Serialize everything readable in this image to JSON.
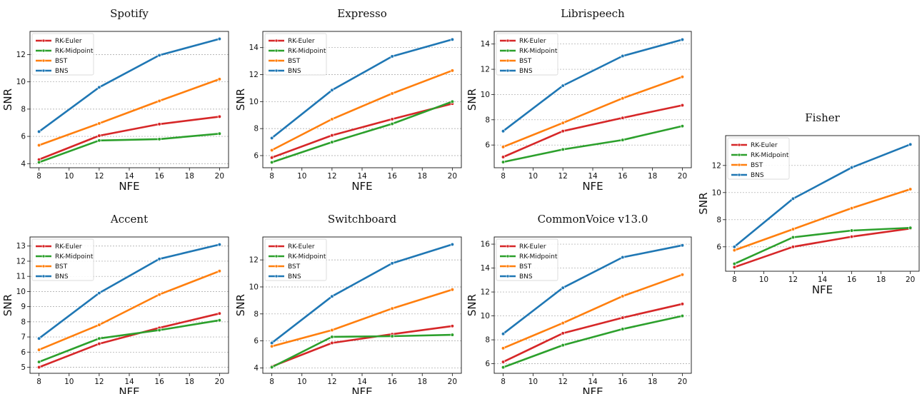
{
  "colors": {
    "RK-Euler": "#d62728",
    "RK-Midpoint": "#2ca02c",
    "BST": "#ff7f0e",
    "BNS": "#1f77b4"
  },
  "chart_data": [
    {
      "type": "line",
      "title": "Spotify",
      "xlabel": "NFE",
      "ylabel": "SNR",
      "x": [
        8,
        12,
        16,
        20
      ],
      "xticks": [
        8,
        10,
        12,
        14,
        16,
        18,
        20
      ],
      "ylim": [
        3.7,
        13.7
      ],
      "yticks": [
        4,
        6,
        8,
        10,
        12
      ],
      "legend": "top-left",
      "grid": "y-dashed",
      "series": [
        {
          "name": "RK-Euler",
          "values": [
            4.3,
            6.05,
            6.9,
            7.45
          ]
        },
        {
          "name": "RK-Midpoint",
          "values": [
            4.1,
            5.7,
            5.8,
            6.2
          ]
        },
        {
          "name": "BST",
          "values": [
            5.35,
            6.95,
            8.6,
            10.2
          ]
        },
        {
          "name": "BNS",
          "values": [
            6.35,
            9.6,
            11.95,
            13.15
          ]
        }
      ]
    },
    {
      "type": "line",
      "title": "Expresso",
      "xlabel": "NFE",
      "ylabel": "SNR",
      "x": [
        8,
        12,
        16,
        20
      ],
      "xticks": [
        8,
        10,
        12,
        14,
        16,
        18,
        20
      ],
      "ylim": [
        5.1,
        15.2
      ],
      "yticks": [
        6,
        8,
        10,
        12,
        14
      ],
      "legend": "top-left",
      "grid": "y-dashed",
      "series": [
        {
          "name": "RK-Euler",
          "values": [
            5.85,
            7.5,
            8.7,
            9.85
          ]
        },
        {
          "name": "RK-Midpoint",
          "values": [
            5.5,
            7.0,
            8.35,
            10.0
          ]
        },
        {
          "name": "BST",
          "values": [
            6.4,
            8.7,
            10.6,
            12.3
          ]
        },
        {
          "name": "BNS",
          "values": [
            7.3,
            10.85,
            13.35,
            14.6
          ]
        }
      ]
    },
    {
      "type": "line",
      "title": "Librispeech",
      "xlabel": "NFE",
      "ylabel": "SNR",
      "x": [
        8,
        12,
        16,
        20
      ],
      "xticks": [
        8,
        10,
        12,
        14,
        16,
        18,
        20
      ],
      "ylim": [
        4.2,
        15.0
      ],
      "yticks": [
        6,
        8,
        10,
        12,
        14
      ],
      "legend": "top-left",
      "grid": "y-dashed",
      "series": [
        {
          "name": "RK-Euler",
          "values": [
            5.05,
            7.1,
            8.15,
            9.15
          ]
        },
        {
          "name": "RK-Midpoint",
          "values": [
            4.65,
            5.65,
            6.4,
            7.5
          ]
        },
        {
          "name": "BST",
          "values": [
            5.85,
            7.75,
            9.7,
            11.4
          ]
        },
        {
          "name": "BNS",
          "values": [
            7.1,
            10.7,
            13.05,
            14.35
          ]
        }
      ]
    },
    {
      "type": "line",
      "title": "Fisher",
      "xlabel": "NFE",
      "ylabel": "SNR",
      "x": [
        8,
        12,
        16,
        20
      ],
      "xticks": [
        8,
        10,
        12,
        14,
        16,
        18,
        20
      ],
      "ylim": [
        4.2,
        14.2
      ],
      "yticks": [
        6,
        8,
        10,
        12
      ],
      "legend": "top-left",
      "grid": "y-dashed",
      "series": [
        {
          "name": "RK-Euler",
          "values": [
            4.5,
            6.0,
            6.75,
            7.35
          ]
        },
        {
          "name": "RK-Midpoint",
          "values": [
            4.75,
            6.7,
            7.2,
            7.4
          ]
        },
        {
          "name": "BST",
          "values": [
            5.75,
            7.3,
            8.85,
            10.25
          ]
        },
        {
          "name": "BNS",
          "values": [
            6.0,
            9.55,
            11.85,
            13.55
          ]
        }
      ]
    },
    {
      "type": "line",
      "title": "Accent",
      "xlabel": "NFE",
      "ylabel": "SNR",
      "x": [
        8,
        12,
        16,
        20
      ],
      "xticks": [
        8,
        10,
        12,
        14,
        16,
        18,
        20
      ],
      "ylim": [
        4.6,
        13.6
      ],
      "yticks": [
        5,
        6,
        7,
        8,
        9,
        10,
        11,
        12,
        13
      ],
      "legend": "top-left",
      "grid": "y-dashed",
      "series": [
        {
          "name": "RK-Euler",
          "values": [
            5.0,
            6.55,
            7.6,
            8.55
          ]
        },
        {
          "name": "RK-Midpoint",
          "values": [
            5.35,
            6.9,
            7.45,
            8.1
          ]
        },
        {
          "name": "BST",
          "values": [
            6.15,
            7.8,
            9.8,
            11.35
          ]
        },
        {
          "name": "BNS",
          "values": [
            6.9,
            9.9,
            12.15,
            13.1
          ]
        }
      ]
    },
    {
      "type": "line",
      "title": "Switchboard",
      "xlabel": "NFE",
      "ylabel": "SNR",
      "x": [
        8,
        12,
        16,
        20
      ],
      "xticks": [
        8,
        10,
        12,
        14,
        16,
        18,
        20
      ],
      "ylim": [
        3.6,
        13.7
      ],
      "yticks": [
        4,
        6,
        8,
        10,
        12
      ],
      "legend": "top-left",
      "grid": "y-dashed",
      "series": [
        {
          "name": "RK-Euler",
          "values": [
            4.1,
            5.85,
            6.5,
            7.1
          ]
        },
        {
          "name": "RK-Midpoint",
          "values": [
            4.05,
            6.3,
            6.35,
            6.45
          ]
        },
        {
          "name": "BST",
          "values": [
            5.6,
            6.8,
            8.4,
            9.8
          ]
        },
        {
          "name": "BNS",
          "values": [
            5.85,
            9.3,
            11.75,
            13.15
          ]
        }
      ]
    },
    {
      "type": "line",
      "title": "CommonVoice v13.0",
      "xlabel": "NFE",
      "ylabel": "SNR",
      "x": [
        8,
        12,
        16,
        20
      ],
      "xticks": [
        8,
        10,
        12,
        14,
        16,
        18,
        20
      ],
      "ylim": [
        5.2,
        16.6
      ],
      "yticks": [
        6,
        8,
        10,
        12,
        14,
        16
      ],
      "legend": "top-left",
      "grid": "y-dashed",
      "series": [
        {
          "name": "RK-Euler",
          "values": [
            6.15,
            8.55,
            9.85,
            11.0
          ]
        },
        {
          "name": "RK-Midpoint",
          "values": [
            5.7,
            7.55,
            8.9,
            10.0
          ]
        },
        {
          "name": "BST",
          "values": [
            7.3,
            9.4,
            11.65,
            13.45
          ]
        },
        {
          "name": "BNS",
          "values": [
            8.5,
            12.35,
            14.9,
            15.9
          ]
        }
      ]
    }
  ]
}
